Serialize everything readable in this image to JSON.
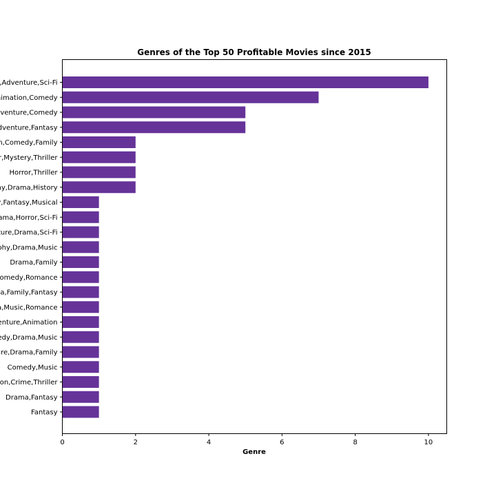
{
  "chart_data": {
    "type": "bar",
    "orientation": "horizontal",
    "title": "Genres of the Top 50 Profitable Movies since 2015",
    "xlabel": "Genre",
    "ylabel": "",
    "xlim": [
      0,
      10.5
    ],
    "xticks": [
      "0",
      "2",
      "4",
      "6",
      "8",
      "10"
    ],
    "bar_color": "#663399",
    "grid": false,
    "categories": [
      "Action,Adventure,Sci-Fi",
      "Adventure,Animation,Comedy",
      "Action,Adventure,Comedy",
      "Action,Adventure,Fantasy",
      "Animation,Comedy,Family",
      "Horror,Mystery,Thriller",
      "Horror,Thriller",
      "Biography,Drama,History",
      "Family,Fantasy,Musical",
      "Drama,Horror,Sci-Fi",
      "Adventure,Drama,Sci-Fi",
      "Biography,Drama,Music",
      "Drama,Family",
      "Comedy,Romance",
      "Drama,Family,Fantasy",
      "Drama,Music,Romance",
      "Adventure,Animation",
      "Comedy,Drama,Music",
      "Adventure,Drama,Family",
      "Comedy,Music",
      "Action,Crime,Thriller",
      "Drama,Fantasy",
      "Fantasy"
    ],
    "values": [
      10,
      7,
      5,
      5,
      2,
      2,
      2,
      2,
      1,
      1,
      1,
      1,
      1,
      1,
      1,
      1,
      1,
      1,
      1,
      1,
      1,
      1,
      1
    ]
  }
}
